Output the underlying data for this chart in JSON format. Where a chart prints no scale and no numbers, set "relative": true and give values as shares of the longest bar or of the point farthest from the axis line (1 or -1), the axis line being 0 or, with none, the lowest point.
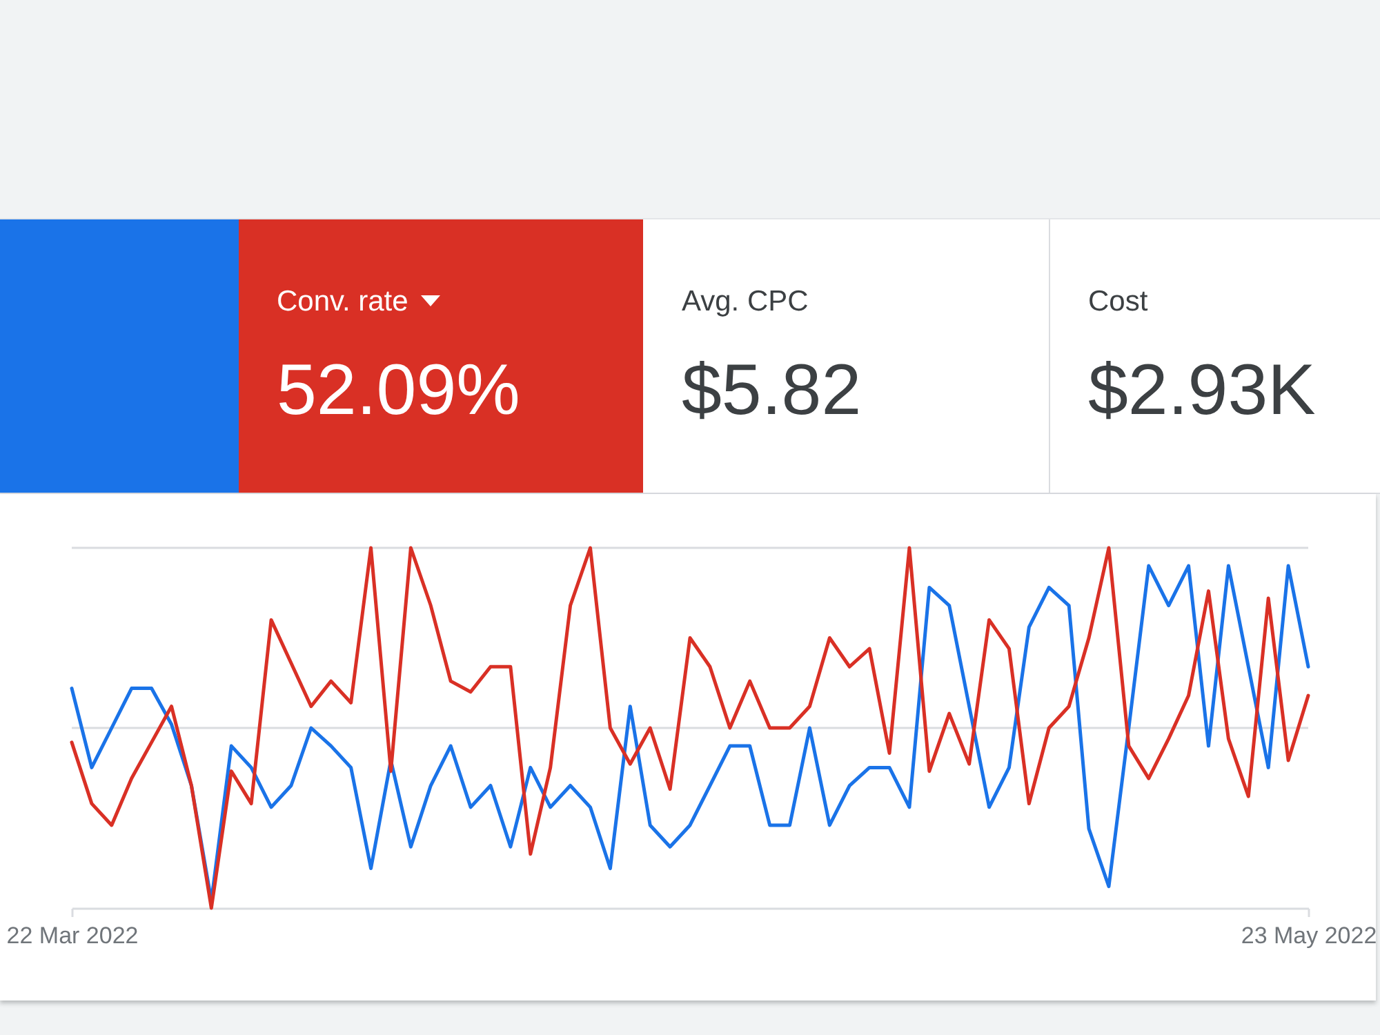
{
  "chart_data": [
    {
      "type": "other",
      "categories": [
        null,
        "Conv. rate",
        "Avg. CPC",
        "Cost"
      ],
      "value_labels": [
        null,
        "52.09%",
        "$5.82",
        "$2.93K"
      ],
      "colors": [
        "#1a73e8",
        "#d93025",
        "#ffffff",
        "#ffffff"
      ]
    },
    {
      "type": "line",
      "relative": true,
      "x": [
        "2022-03-22",
        "2022-03-23",
        "2022-03-24",
        "2022-03-25",
        "2022-03-26",
        "2022-03-27",
        "2022-03-28",
        "2022-03-29",
        "2022-03-30",
        "2022-03-31",
        "2022-04-01",
        "2022-04-02",
        "2022-04-03",
        "2022-04-04",
        "2022-04-05",
        "2022-04-06",
        "2022-04-07",
        "2022-04-08",
        "2022-04-09",
        "2022-04-10",
        "2022-04-11",
        "2022-04-12",
        "2022-04-13",
        "2022-04-14",
        "2022-04-15",
        "2022-04-16",
        "2022-04-17",
        "2022-04-18",
        "2022-04-19",
        "2022-04-20",
        "2022-04-21",
        "2022-04-22",
        "2022-04-23",
        "2022-04-24",
        "2022-04-25",
        "2022-04-26",
        "2022-04-27",
        "2022-04-28",
        "2022-04-29",
        "2022-04-30",
        "2022-05-01",
        "2022-05-02",
        "2022-05-03",
        "2022-05-04",
        "2022-05-05",
        "2022-05-06",
        "2022-05-07",
        "2022-05-08",
        "2022-05-09",
        "2022-05-10",
        "2022-05-11",
        "2022-05-12",
        "2022-05-13",
        "2022-05-14",
        "2022-05-15",
        "2022-05-16",
        "2022-05-17",
        "2022-05-18",
        "2022-05-19",
        "2022-05-20",
        "2022-05-21",
        "2022-05-22",
        "2022-05-23"
      ],
      "xlim": [
        "2022-03-22",
        "2022-05-23"
      ],
      "xticks": [
        {
          "value": "2022-03-22",
          "label": "22 Mar 2022"
        },
        {
          "value": "2022-05-23",
          "label": "23 May 2022"
        }
      ],
      "ref_lines": [
        {
          "axis": "y",
          "value": 0.5,
          "color": "#dadce0"
        },
        {
          "axis": "y",
          "value": 1,
          "color": "#dadce0"
        }
      ],
      "series": [
        {
          "color": "#1a73e8",
          "values": [
            0.61,
            0.39,
            0.5,
            0.61,
            0.61,
            0.51,
            0.34,
            0.02,
            0.45,
            0.39,
            0.28,
            0.34,
            0.5,
            0.45,
            0.39,
            0.11,
            0.41,
            0.17,
            0.34,
            0.45,
            0.28,
            0.34,
            0.17,
            0.39,
            0.28,
            0.34,
            0.28,
            0.11,
            0.56,
            0.23,
            0.17,
            0.23,
            0.34,
            0.45,
            0.45,
            0.23,
            0.23,
            0.5,
            0.23,
            0.34,
            0.39,
            0.39,
            0.28,
            0.89,
            0.84,
            0.56,
            0.28,
            0.39,
            0.78,
            0.89,
            0.84,
            0.22,
            0.06,
            0.5,
            0.95,
            0.84,
            0.95,
            0.45,
            0.95,
            0.67,
            0.39,
            0.95,
            0.67
          ]
        },
        {
          "color": "#d93025",
          "values": [
            0.46,
            0.29,
            0.23,
            0.36,
            0.46,
            0.56,
            0.34,
            0,
            0.38,
            0.29,
            0.8,
            0.68,
            0.56,
            0.63,
            0.57,
            1,
            0.38,
            1,
            0.84,
            0.63,
            0.6,
            0.67,
            0.67,
            0.15,
            0.39,
            0.84,
            1,
            0.5,
            0.4,
            0.5,
            0.33,
            0.75,
            0.67,
            0.5,
            0.63,
            0.5,
            0.5,
            0.56,
            0.75,
            0.67,
            0.72,
            0.43,
            1,
            0.38,
            0.54,
            0.4,
            0.8,
            0.72,
            0.29,
            0.5,
            0.56,
            0.75,
            1,
            0.45,
            0.36,
            0.47,
            0.59,
            0.88,
            0.47,
            0.31,
            0.86,
            0.41,
            0.59
          ]
        }
      ]
    }
  ]
}
